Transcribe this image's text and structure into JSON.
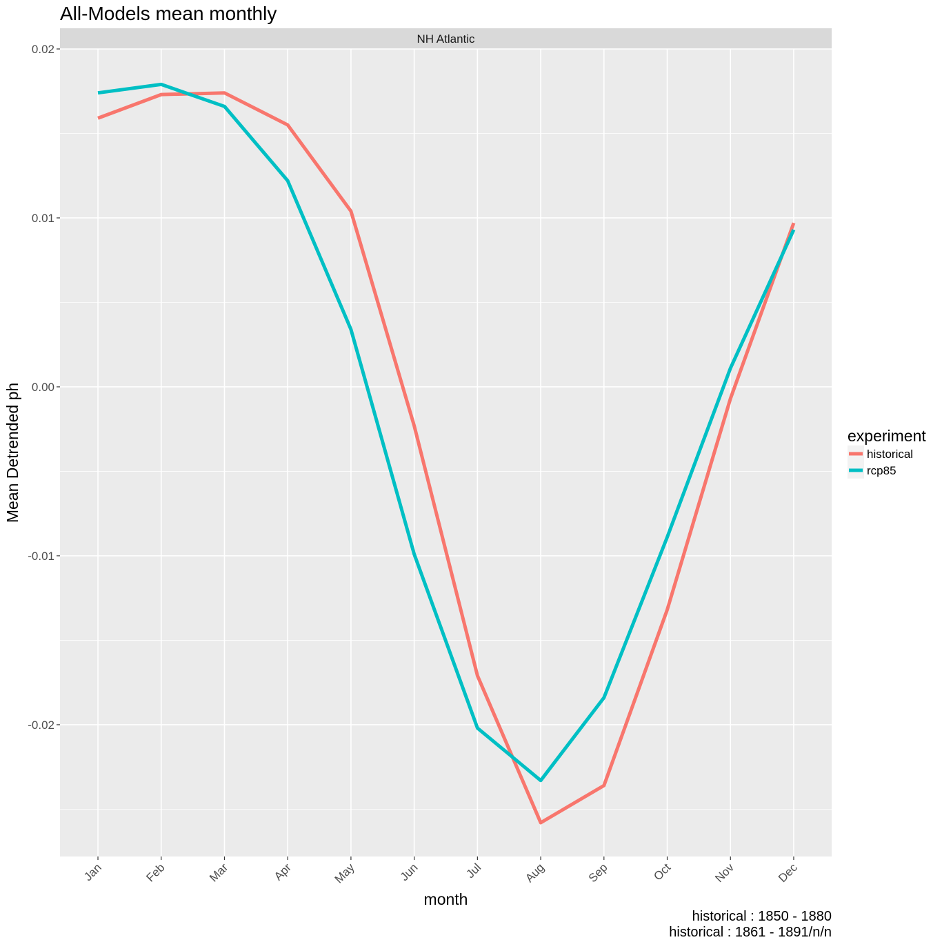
{
  "chart_data": {
    "type": "line",
    "title": "All-Models mean monthly",
    "facet": "NH Atlantic",
    "xlabel": "month",
    "ylabel": "Mean Detrended ph",
    "categories": [
      "Jan",
      "Feb",
      "Mar",
      "Apr",
      "May",
      "Jun",
      "Jul",
      "Aug",
      "Sep",
      "Oct",
      "Nov",
      "Dec"
    ],
    "ylim": [
      -0.0278,
      0.02
    ],
    "yticks": [
      -0.02,
      -0.01,
      0.0,
      0.01,
      0.02
    ],
    "ytick_labels": [
      "-0.02",
      "-0.01",
      "0.00",
      "0.01",
      "0.02"
    ],
    "grid": true,
    "legend": {
      "title": "experiment",
      "position": "right"
    },
    "series": [
      {
        "name": "historical",
        "color": "#F8766D",
        "values": [
          0.0159,
          0.0173,
          0.0174,
          0.0155,
          0.0104,
          -0.0023,
          -0.0171,
          -0.0258,
          -0.0236,
          -0.0132,
          -0.0007,
          0.0097
        ]
      },
      {
        "name": "rcp85",
        "color": "#00BFC4",
        "values": [
          0.0174,
          0.0179,
          0.0166,
          0.0122,
          0.0034,
          -0.0099,
          -0.0202,
          -0.0233,
          -0.0184,
          -0.0089,
          0.0011,
          0.0093
        ]
      }
    ],
    "captions": [
      "historical : 1850 - 1880",
      "historical : 1861 - 1891/n/n"
    ]
  }
}
